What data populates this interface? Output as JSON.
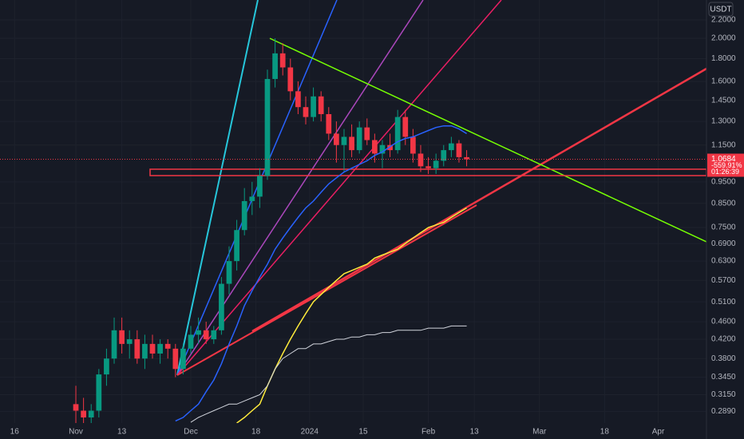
{
  "chart_data": {
    "type": "candlestick",
    "currency": "USDT",
    "price_change": "-559.91%",
    "countdown": "01:26:39",
    "log_scale": true,
    "grid": true,
    "up_color": "#089981",
    "down_color": "#f23645",
    "xlim": [
      -19.8,
      164.6
    ],
    "ylim": [
      0.272,
      2.44
    ],
    "xticks": [
      {
        "value": -16,
        "label": "16"
      },
      {
        "value": 0,
        "label": "Nov"
      },
      {
        "value": 12,
        "label": "13"
      },
      {
        "value": 30,
        "label": "Dec"
      },
      {
        "value": 47,
        "label": "18"
      },
      {
        "value": 61,
        "label": "2024"
      },
      {
        "value": 75,
        "label": "15"
      },
      {
        "value": 92,
        "label": "Feb"
      },
      {
        "value": 104,
        "label": "13"
      },
      {
        "value": 121,
        "label": "Mar"
      },
      {
        "value": 138,
        "label": "18"
      },
      {
        "value": 152,
        "label": "Apr"
      }
    ],
    "yticks": [
      {
        "value": 2.2,
        "label": "2.2000"
      },
      {
        "value": 2.0,
        "label": "2.0000"
      },
      {
        "value": 1.8,
        "label": "1.8000"
      },
      {
        "value": 1.6,
        "label": "1.6000"
      },
      {
        "value": 1.45,
        "label": "1.4500"
      },
      {
        "value": 1.3,
        "label": "1.3000"
      },
      {
        "value": 1.15,
        "label": "1.1500"
      },
      {
        "value": 0.95,
        "label": "0.9500"
      },
      {
        "value": 0.85,
        "label": "0.8500"
      },
      {
        "value": 0.75,
        "label": "0.7500"
      },
      {
        "value": 0.69,
        "label": "0.6900"
      },
      {
        "value": 0.63,
        "label": "0.6300"
      },
      {
        "value": 0.57,
        "label": "0.5700"
      },
      {
        "value": 0.51,
        "label": "0.5100"
      },
      {
        "value": 0.46,
        "label": "0.4600"
      },
      {
        "value": 0.42,
        "label": "0.4200"
      },
      {
        "value": 0.38,
        "label": "0.3800"
      },
      {
        "value": 0.345,
        "label": "0.3450"
      },
      {
        "value": 0.315,
        "label": "0.3150"
      },
      {
        "value": 0.289,
        "label": "0.2890"
      }
    ],
    "x": [
      0,
      2,
      4,
      6,
      8,
      10,
      12,
      14,
      16,
      18,
      20,
      22,
      24,
      26,
      28,
      30,
      32,
      34,
      36,
      38,
      40,
      42,
      44,
      46,
      48,
      50,
      52,
      54,
      56,
      58,
      60,
      62,
      64,
      66,
      68,
      70,
      72,
      74,
      76,
      78,
      80,
      82,
      84,
      86,
      88,
      90,
      92,
      94,
      96,
      98,
      100,
      102
    ],
    "open": [
      0.3,
      0.29,
      0.28,
      0.29,
      0.35,
      0.38,
      0.44,
      0.41,
      0.42,
      0.38,
      0.41,
      0.39,
      0.41,
      0.4,
      0.36,
      0.4,
      0.43,
      0.44,
      0.42,
      0.44,
      0.56,
      0.63,
      0.74,
      0.86,
      0.88,
      0.98,
      1.62,
      1.85,
      1.72,
      1.52,
      1.4,
      1.33,
      1.48,
      1.35,
      1.22,
      1.15,
      1.2,
      1.12,
      1.26,
      1.18,
      1.1,
      1.15,
      1.12,
      1.33,
      1.2,
      1.1,
      1.03,
      1.02,
      1.06,
      1.12,
      1.16,
      1.08
    ],
    "high": [
      0.33,
      0.31,
      0.3,
      0.36,
      0.4,
      0.47,
      0.47,
      0.44,
      0.44,
      0.43,
      0.43,
      0.42,
      0.42,
      0.41,
      0.41,
      0.45,
      0.47,
      0.46,
      0.45,
      0.58,
      0.68,
      0.78,
      0.92,
      0.95,
      1.02,
      1.7,
      2.0,
      1.95,
      1.8,
      1.6,
      1.48,
      1.55,
      1.52,
      1.4,
      1.3,
      1.25,
      1.28,
      1.3,
      1.32,
      1.22,
      1.18,
      1.22,
      1.38,
      1.38,
      1.25,
      1.15,
      1.08,
      1.1,
      1.15,
      1.2,
      1.18,
      1.12
    ],
    "low": [
      0.27,
      0.27,
      0.27,
      0.28,
      0.33,
      0.37,
      0.39,
      0.38,
      0.37,
      0.36,
      0.38,
      0.37,
      0.38,
      0.345,
      0.35,
      0.39,
      0.41,
      0.41,
      0.41,
      0.43,
      0.53,
      0.6,
      0.72,
      0.8,
      0.83,
      0.96,
      1.55,
      1.65,
      1.45,
      1.35,
      1.28,
      1.3,
      1.3,
      1.18,
      1.05,
      1.0,
      1.08,
      1.1,
      1.15,
      1.05,
      1.02,
      1.08,
      1.1,
      1.15,
      1.05,
      1.0,
      0.99,
      0.99,
      1.03,
      1.08,
      1.05,
      1.03
    ],
    "close": [
      0.29,
      0.28,
      0.29,
      0.35,
      0.38,
      0.44,
      0.41,
      0.42,
      0.38,
      0.41,
      0.39,
      0.41,
      0.4,
      0.36,
      0.4,
      0.43,
      0.44,
      0.42,
      0.44,
      0.56,
      0.63,
      0.74,
      0.86,
      0.88,
      0.98,
      1.62,
      1.85,
      1.72,
      1.52,
      1.4,
      1.33,
      1.48,
      1.35,
      1.22,
      1.15,
      1.2,
      1.12,
      1.26,
      1.18,
      1.1,
      1.15,
      1.12,
      1.33,
      1.2,
      1.1,
      1.03,
      1.02,
      1.06,
      1.12,
      1.16,
      1.08,
      1.0684
    ],
    "series": [
      {
        "color": "#2962ff",
        "values": [
          null,
          null,
          null,
          null,
          null,
          null,
          null,
          null,
          null,
          null,
          null,
          null,
          null,
          0.275,
          0.28,
          0.29,
          0.3,
          0.32,
          0.34,
          0.37,
          0.41,
          0.45,
          0.5,
          0.54,
          0.58,
          0.62,
          0.67,
          0.71,
          0.75,
          0.79,
          0.83,
          0.86,
          0.9,
          0.94,
          0.97,
          1.0,
          1.02,
          1.04,
          1.06,
          1.09,
          1.11,
          1.14,
          1.17,
          1.19,
          1.2,
          1.22,
          1.24,
          1.26,
          1.27,
          1.27,
          1.25,
          1.22
        ]
      },
      {
        "color": "#ffeb3b",
        "values": [
          null,
          null,
          null,
          null,
          null,
          null,
          null,
          null,
          null,
          null,
          null,
          null,
          null,
          null,
          null,
          null,
          null,
          null,
          null,
          null,
          null,
          0.272,
          0.28,
          0.29,
          0.3,
          0.33,
          0.36,
          0.39,
          0.42,
          0.45,
          0.48,
          0.51,
          0.53,
          0.55,
          0.57,
          0.59,
          0.6,
          0.61,
          0.62,
          0.64,
          0.65,
          0.66,
          0.67,
          0.69,
          0.71,
          0.73,
          0.75,
          0.76,
          0.77,
          0.79,
          0.81,
          0.83
        ]
      },
      {
        "color": "#d1d4dc",
        "values": [
          null,
          null,
          null,
          null,
          null,
          null,
          null,
          null,
          null,
          null,
          null,
          null,
          null,
          null,
          null,
          0.273,
          0.28,
          0.285,
          0.29,
          0.295,
          0.3,
          0.3,
          0.305,
          0.31,
          0.315,
          0.33,
          0.36,
          0.38,
          0.39,
          0.4,
          0.4,
          0.41,
          0.41,
          0.415,
          0.42,
          0.42,
          0.425,
          0.425,
          0.43,
          0.43,
          0.435,
          0.435,
          0.44,
          0.44,
          0.44,
          0.44,
          0.445,
          0.445,
          0.445,
          0.45,
          0.45,
          0.45
        ]
      }
    ]
  }
}
